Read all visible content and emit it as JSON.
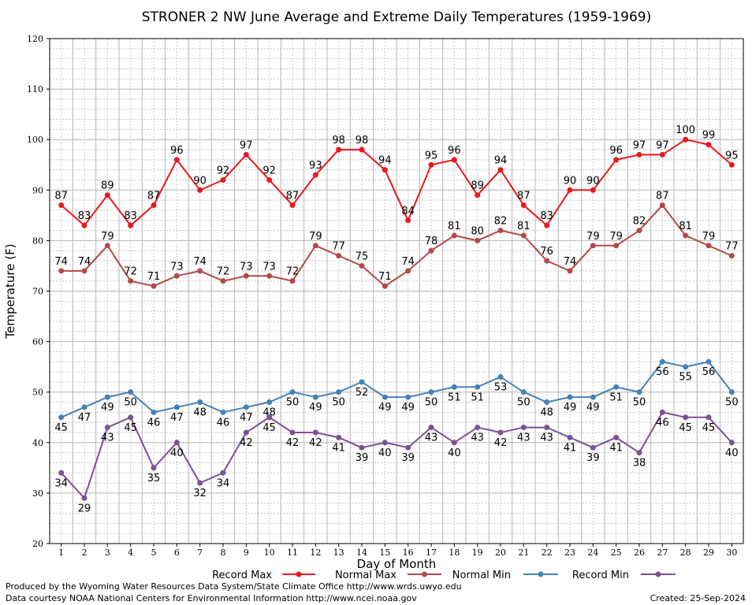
{
  "chart_data": {
    "type": "line",
    "title": "STRONER 2 NW June Average and Extreme Daily Temperatures (1959-1969)",
    "xlabel": "Day of Month",
    "ylabel": "Temperature (F)",
    "ylim": [
      20,
      120
    ],
    "yticks": [
      20,
      30,
      40,
      50,
      60,
      70,
      80,
      90,
      100,
      110,
      120
    ],
    "x": [
      1,
      2,
      3,
      4,
      5,
      6,
      7,
      8,
      9,
      10,
      11,
      12,
      13,
      14,
      15,
      16,
      17,
      18,
      19,
      20,
      21,
      22,
      23,
      24,
      25,
      26,
      27,
      28,
      29,
      30
    ],
    "grid": true,
    "legend_position": "bottom",
    "series": [
      {
        "name": "Record Max",
        "color": "#e8191e",
        "label_position": "above",
        "values": [
          87,
          83,
          89,
          83,
          87,
          96,
          90,
          92,
          97,
          92,
          87,
          93,
          98,
          98,
          94,
          84,
          95,
          96,
          89,
          94,
          87,
          83,
          90,
          90,
          96,
          97,
          97,
          100,
          99,
          95
        ]
      },
      {
        "name": "Normal Max",
        "color": "#b34a4a",
        "label_position": "above",
        "values": [
          74,
          74,
          79,
          72,
          71,
          73,
          74,
          72,
          73,
          73,
          72,
          79,
          77,
          75,
          71,
          74,
          78,
          81,
          80,
          82,
          81,
          76,
          74,
          79,
          79,
          82,
          87,
          81,
          79,
          77
        ]
      },
      {
        "name": "Normal Min",
        "color": "#4682b4",
        "label_position": "below",
        "values": [
          45,
          47,
          49,
          50,
          46,
          47,
          48,
          46,
          47,
          48,
          50,
          49,
          50,
          52,
          49,
          49,
          50,
          51,
          51,
          53,
          50,
          48,
          49,
          49,
          51,
          50,
          56,
          55,
          56,
          50
        ]
      },
      {
        "name": "Record Min",
        "color": "#7b5294",
        "label_position": "below",
        "values": [
          34,
          29,
          43,
          45,
          35,
          40,
          32,
          34,
          42,
          45,
          42,
          42,
          41,
          39,
          40,
          39,
          43,
          40,
          43,
          42,
          43,
          43,
          41,
          39,
          41,
          38,
          46,
          45,
          45,
          40
        ]
      }
    ]
  },
  "footer": {
    "produced_by": "Produced by the Wyoming Water Resources Data System/State Climate Office http://www.wrds.uwyo.edu",
    "data_courtesy": "Data courtesy NOAA National Centers for Environmental Information http://www.ncei.noaa.gov",
    "created": "Created:  25-Sep-2024"
  }
}
